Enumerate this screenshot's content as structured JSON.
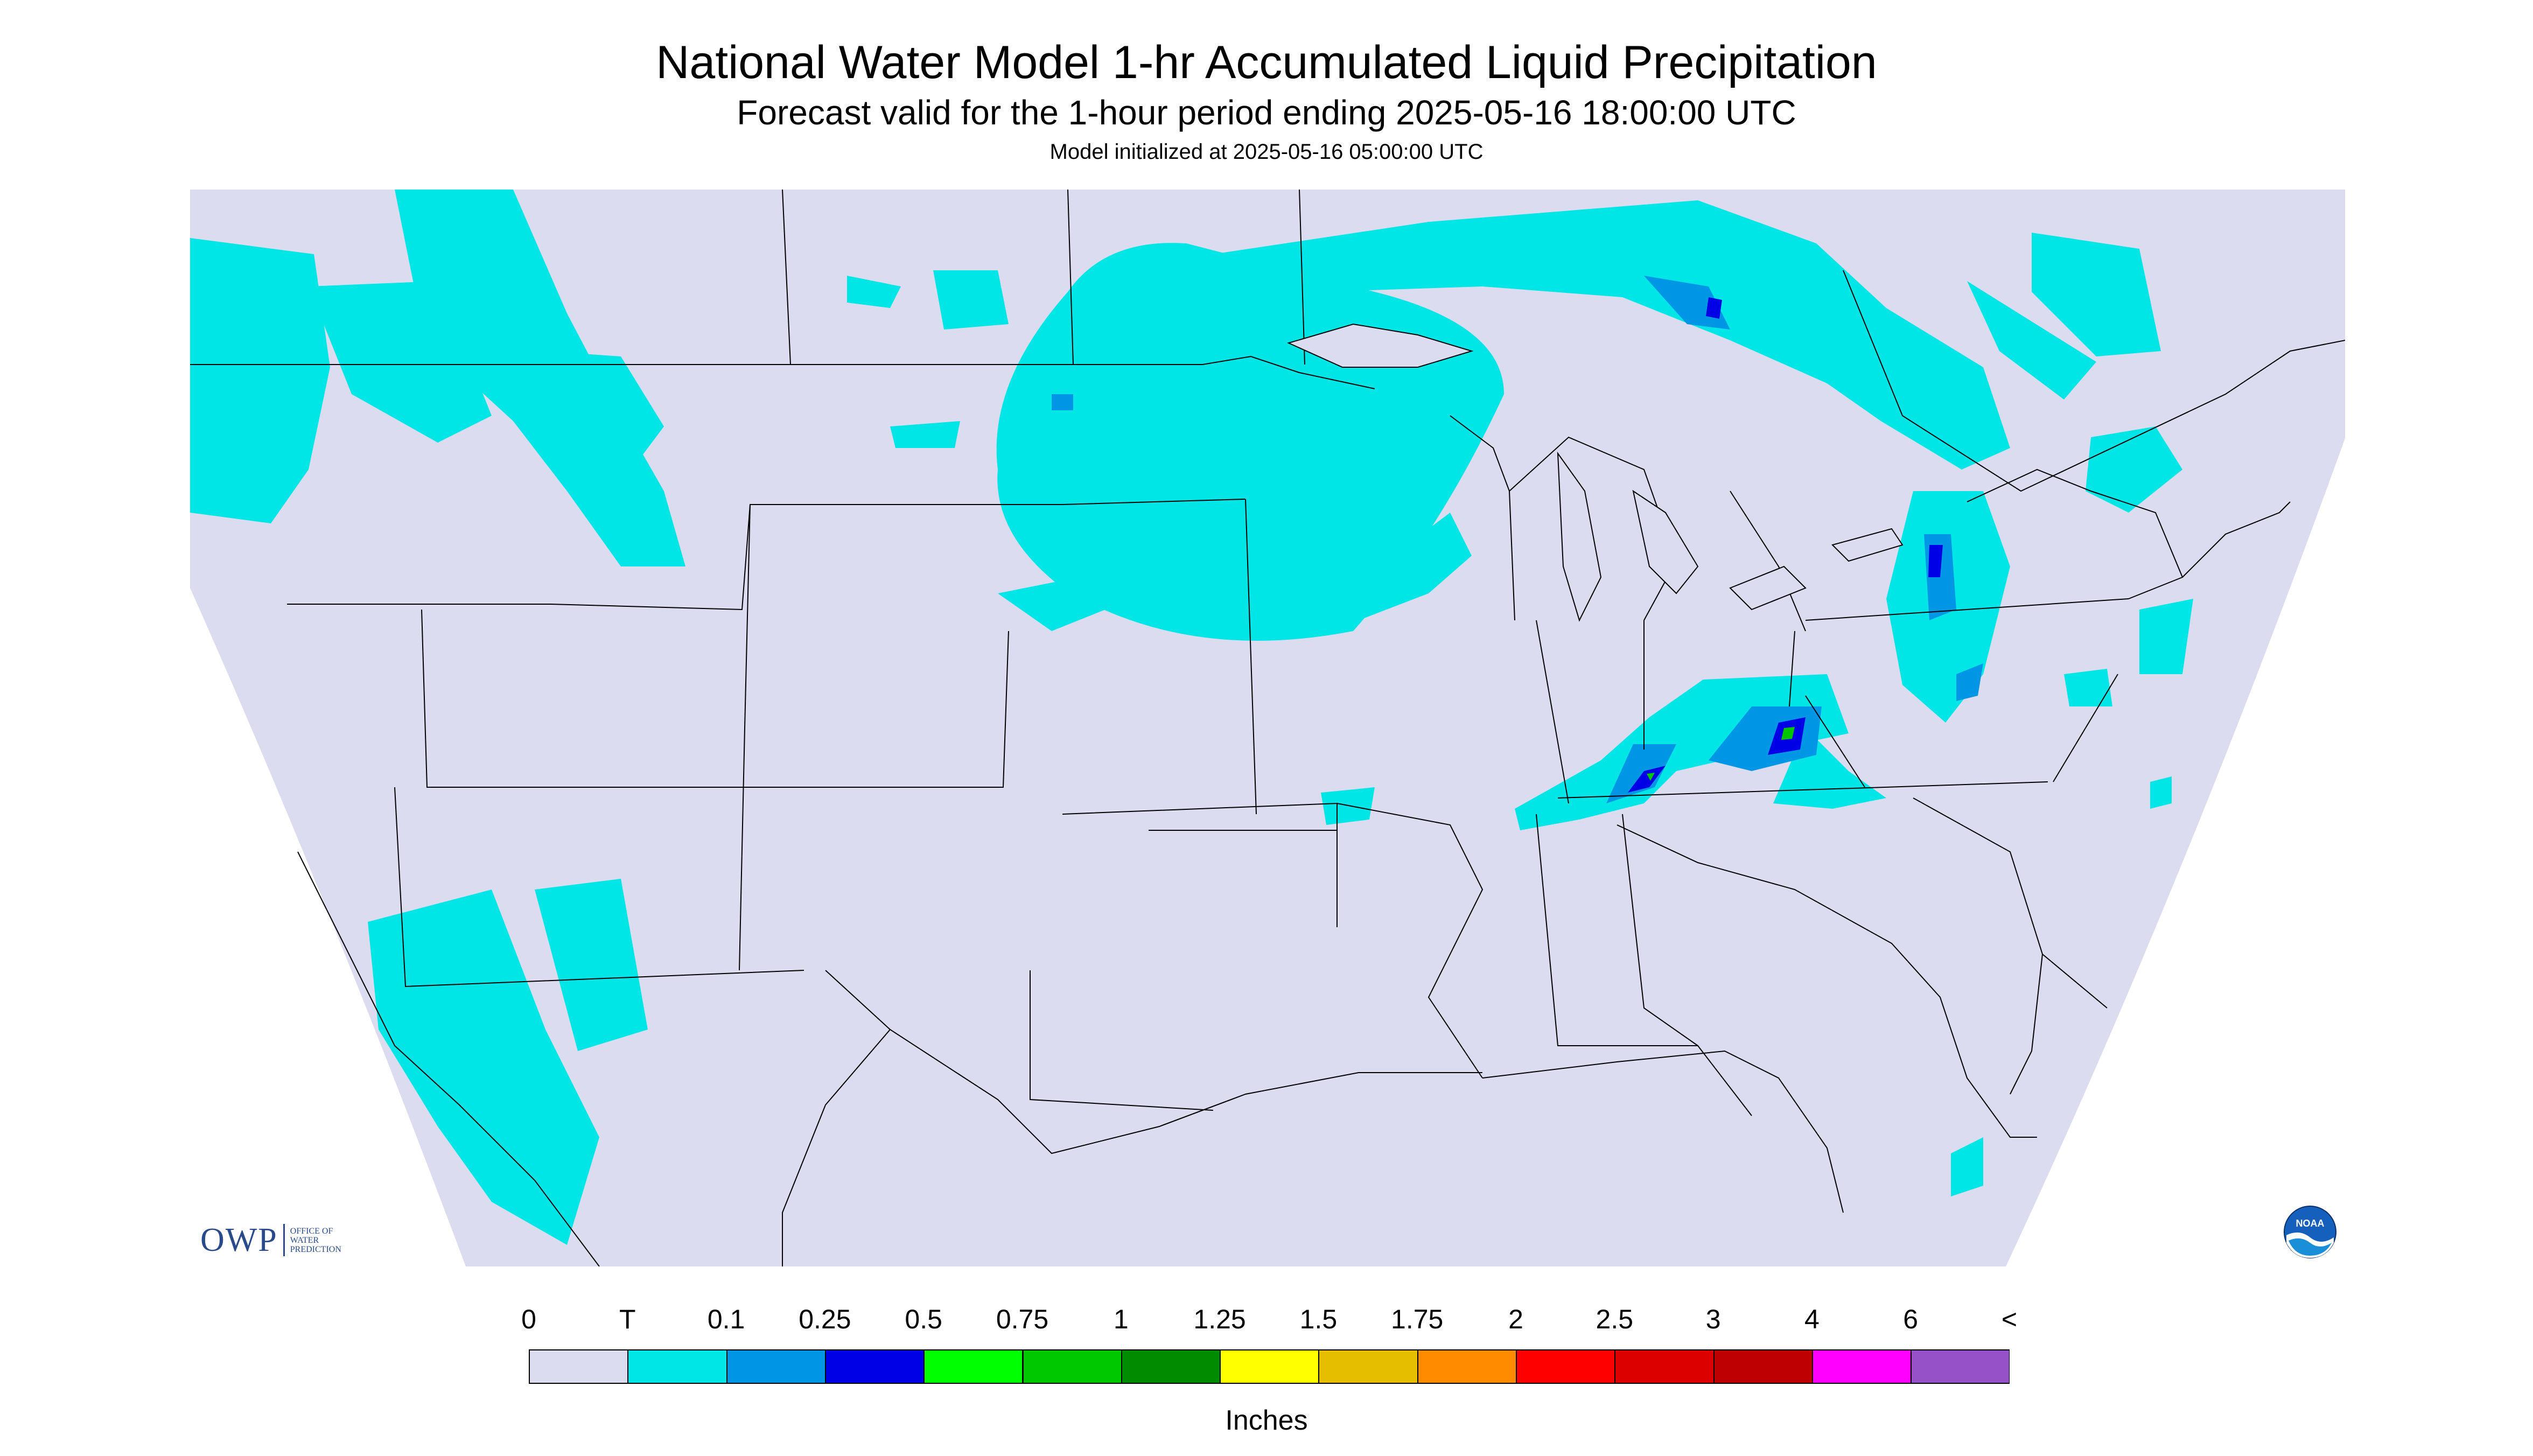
{
  "header": {
    "title": "National Water Model 1-hr Accumulated Liquid Precipitation",
    "subtitle": "Forecast valid for the 1-hour period ending 2025-05-16 18:00:00 UTC",
    "init": "Model initialized at 2025-05-16 05:00:00 UTC"
  },
  "legend": {
    "labels": [
      "0",
      "T",
      "0.1",
      "0.25",
      "0.5",
      "0.75",
      "1",
      "1.25",
      "1.5",
      "1.75",
      "2",
      "2.5",
      "3",
      "4",
      "6",
      "<"
    ],
    "colors": [
      "#dcdcf0",
      "#00e6e6",
      "#0096e6",
      "#0000e6",
      "#00ff00",
      "#00c800",
      "#008c00",
      "#ffff00",
      "#e6be00",
      "#ff8c00",
      "#ff0000",
      "#dc0000",
      "#be0000",
      "#ff00ff",
      "#9650c8"
    ],
    "units": "Inches"
  },
  "logos": {
    "owp_word": "OWP",
    "owp_text": "OFFICE OF WATER PREDICTION",
    "noaa_text": "NOAA"
  },
  "map": {
    "background": "#ffffff",
    "domain_fill": "#dcdcf0",
    "precip_trace": "#00e6e6",
    "precip_light": "#0096e6",
    "precip_moderate": "#0000e6",
    "precip_heavy": "#00c800"
  }
}
